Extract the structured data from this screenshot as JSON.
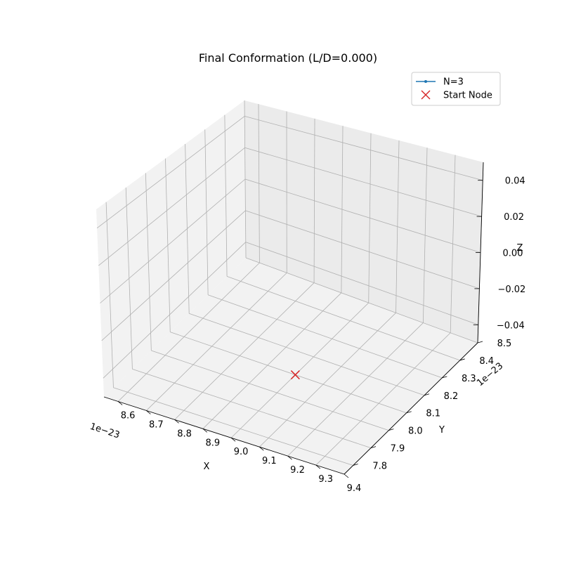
{
  "chart_data": {
    "type": "line",
    "projection": "3d",
    "title": "Final Conformation (L/D=0.000)",
    "xlabel": "X",
    "ylabel": "Y",
    "zlabel": "Z",
    "x_offset_label": "1e−23",
    "y_offset_label": "1e−23",
    "x_ticks": [
      "8.6",
      "8.7",
      "8.8",
      "8.9",
      "9.0",
      "9.1",
      "9.2",
      "9.3",
      "9.4"
    ],
    "y_ticks": [
      "7.8",
      "7.9",
      "8.0",
      "8.1",
      "8.2",
      "8.3",
      "8.4",
      "8.5"
    ],
    "z_ticks": [
      "−0.04",
      "−0.02",
      "0.00",
      "0.02",
      "0.04"
    ],
    "xlim": [
      8.55,
      9.4
    ],
    "ylim": [
      7.75,
      8.5
    ],
    "zlim": [
      -0.05,
      0.05
    ],
    "grid": true,
    "legend_position": "top-right",
    "series": [
      {
        "name": "N=3",
        "kind": "line",
        "color": "#1f77b4",
        "points": []
      },
      {
        "name": "Start Node",
        "kind": "marker-x",
        "color": "#d62728",
        "points": [
          {
            "x": 9.0,
            "y": 8.1,
            "z": 0.0
          }
        ]
      }
    ]
  }
}
